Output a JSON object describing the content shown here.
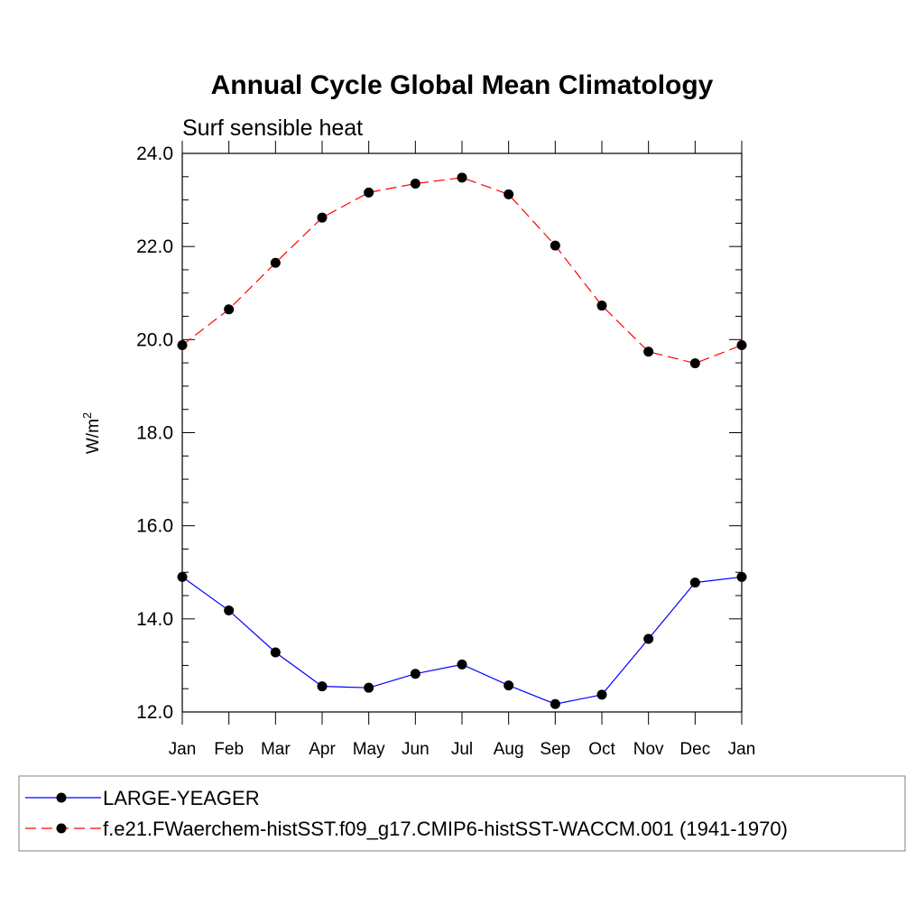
{
  "chart_data": {
    "type": "line",
    "title": "Annual Cycle Global Mean Climatology",
    "subtitle": "Surf sensible heat",
    "ylabel": "W/m",
    "ylabel_superscript": "2",
    "xlabel": "",
    "ylim": [
      12.0,
      24.0
    ],
    "yticks": [
      "12.0",
      "14.0",
      "16.0",
      "18.0",
      "20.0",
      "22.0",
      "24.0"
    ],
    "categories": [
      "Jan",
      "Feb",
      "Mar",
      "Apr",
      "May",
      "Jun",
      "Jul",
      "Aug",
      "Sep",
      "Oct",
      "Nov",
      "Dec",
      "Jan"
    ],
    "series": [
      {
        "name": "LARGE-YEAGER",
        "color": "#0000ff",
        "dash": "solid",
        "values": [
          14.9,
          14.18,
          13.28,
          12.55,
          12.52,
          12.82,
          13.02,
          12.57,
          12.17,
          12.37,
          13.57,
          14.78,
          14.9
        ]
      },
      {
        "name": "f.e21.FWaerchem-histSST.f09_g17.CMIP6-histSST-WACCM.001 (1941-1970)",
        "color": "#ff0000",
        "dash": "dashed",
        "values": [
          19.88,
          20.65,
          21.65,
          22.62,
          23.16,
          23.35,
          23.48,
          23.12,
          22.02,
          20.73,
          19.74,
          19.49,
          19.88
        ]
      }
    ],
    "legend": {
      "position": "bottom"
    }
  }
}
